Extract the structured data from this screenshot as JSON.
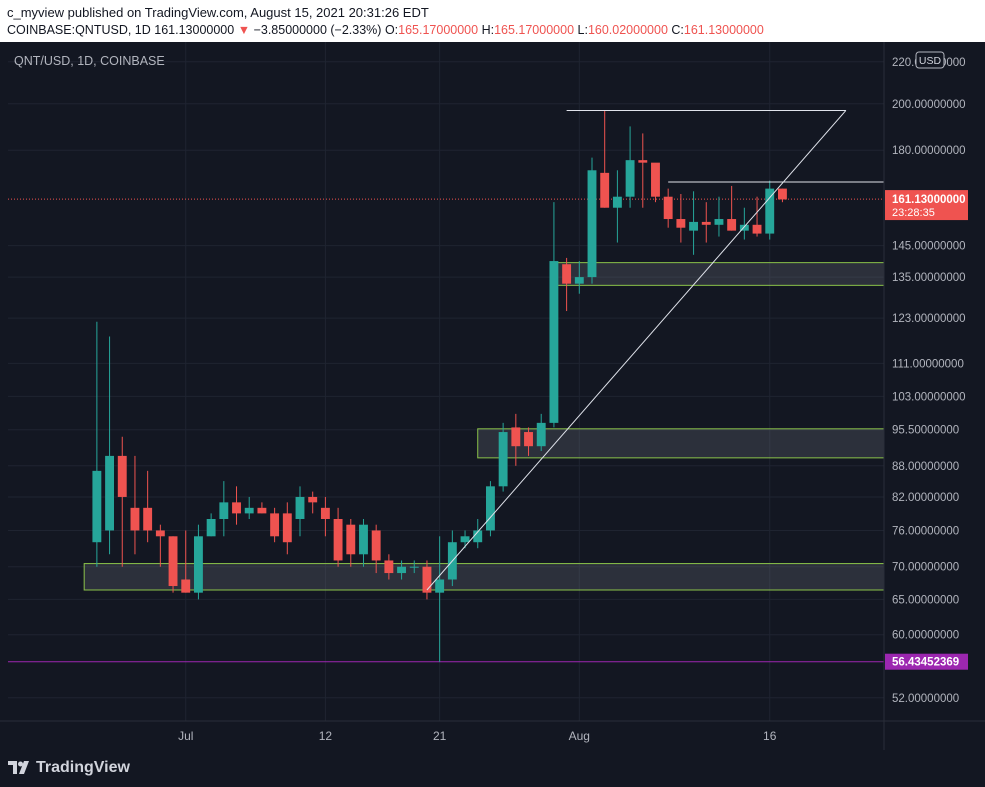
{
  "header": {
    "published": "c_myview published on TradingView.com, August 15, 2021 20:31:26 EDT",
    "symbol": "COINBASE:QNTUSD, 1D",
    "last": "161.13000000",
    "arrow": "▼",
    "change": "−3.85000000 (−2.33%)",
    "o_label": "O:",
    "o_value": "165.17000000",
    "h_label": "H:",
    "h_value": "165.17000000",
    "l_label": "L:",
    "l_value": "160.02000000",
    "c_label": "C:",
    "c_value": "161.13000000"
  },
  "footer": {
    "brand": "TradingView",
    "logo_icon": "tradingview-logo-icon"
  },
  "colors": {
    "background": "#131722",
    "up": "#26a69a",
    "down": "#ef5350",
    "grid": "#1f2431",
    "text": "#b2b5be",
    "zone_stroke": "#8bc34a",
    "support_line": "#9c27b0"
  },
  "chart_data": {
    "type": "candlestick",
    "legend": "QNT/USD, 1D, COINBASE",
    "currency": "USD",
    "y_scale": "log",
    "ylim": [
      49,
      228
    ],
    "y_ticks": [
      "52.00000000",
      "60.00000000",
      "65.00000000",
      "70.00000000",
      "76.00000000",
      "82.00000000",
      "88.00000000",
      "95.50000000",
      "103.00000000",
      "111.00000000",
      "123.00000000",
      "135.00000000",
      "145.00000000",
      "180.00000000",
      "200.00000000",
      "220.00000000"
    ],
    "x_ticks": [
      {
        "label": "Jul",
        "date": "2021-07-01"
      },
      {
        "label": "12",
        "date": "2021-07-12"
      },
      {
        "label": "21",
        "date": "2021-07-21"
      },
      {
        "label": "Aug",
        "date": "2021-08-01"
      },
      {
        "label": "16",
        "date": "2021-08-16"
      }
    ],
    "x_range": [
      "2021-06-17",
      "2021-08-25"
    ],
    "candles": [
      {
        "date": "2021-06-24",
        "o": 74,
        "h": 122,
        "l": 70,
        "c": 87
      },
      {
        "date": "2021-06-25",
        "o": 76,
        "h": 118,
        "l": 72,
        "c": 90
      },
      {
        "date": "2021-06-26",
        "o": 90,
        "h": 94,
        "l": 70,
        "c": 82
      },
      {
        "date": "2021-06-27",
        "o": 80,
        "h": 90,
        "l": 72,
        "c": 76
      },
      {
        "date": "2021-06-28",
        "o": 80,
        "h": 87,
        "l": 74,
        "c": 76
      },
      {
        "date": "2021-06-29",
        "o": 76,
        "h": 77,
        "l": 70,
        "c": 75
      },
      {
        "date": "2021-06-30",
        "o": 75,
        "h": 75,
        "l": 66,
        "c": 67
      },
      {
        "date": "2021-07-01",
        "o": 68,
        "h": 76,
        "l": 66,
        "c": 66
      },
      {
        "date": "2021-07-02",
        "o": 66,
        "h": 77,
        "l": 65,
        "c": 75
      },
      {
        "date": "2021-07-03",
        "o": 75,
        "h": 79,
        "l": 75,
        "c": 78
      },
      {
        "date": "2021-07-04",
        "o": 78,
        "h": 85,
        "l": 75,
        "c": 81
      },
      {
        "date": "2021-07-05",
        "o": 81,
        "h": 84,
        "l": 77,
        "c": 79
      },
      {
        "date": "2021-07-06",
        "o": 79,
        "h": 82,
        "l": 78,
        "c": 80
      },
      {
        "date": "2021-07-07",
        "o": 80,
        "h": 81,
        "l": 79,
        "c": 79
      },
      {
        "date": "2021-07-08",
        "o": 79,
        "h": 80,
        "l": 74,
        "c": 75
      },
      {
        "date": "2021-07-09",
        "o": 79,
        "h": 81,
        "l": 72,
        "c": 74
      },
      {
        "date": "2021-07-10",
        "o": 78,
        "h": 84,
        "l": 75,
        "c": 82
      },
      {
        "date": "2021-07-11",
        "o": 82,
        "h": 83,
        "l": 79,
        "c": 81
      },
      {
        "date": "2021-07-12",
        "o": 80,
        "h": 82,
        "l": 75,
        "c": 78
      },
      {
        "date": "2021-07-13",
        "o": 78,
        "h": 80,
        "l": 70,
        "c": 71
      },
      {
        "date": "2021-07-14",
        "o": 77,
        "h": 78,
        "l": 70,
        "c": 72
      },
      {
        "date": "2021-07-15",
        "o": 72,
        "h": 78,
        "l": 70,
        "c": 77
      },
      {
        "date": "2021-07-16",
        "o": 76,
        "h": 77,
        "l": 69,
        "c": 71
      },
      {
        "date": "2021-07-17",
        "o": 71,
        "h": 72,
        "l": 68,
        "c": 69
      },
      {
        "date": "2021-07-18",
        "o": 69,
        "h": 71,
        "l": 68,
        "c": 70
      },
      {
        "date": "2021-07-19",
        "o": 70,
        "h": 71,
        "l": 69,
        "c": 70
      },
      {
        "date": "2021-07-20",
        "o": 70,
        "h": 71,
        "l": 65,
        "c": 66
      },
      {
        "date": "2021-07-21",
        "o": 66,
        "h": 75,
        "l": 56.4,
        "c": 68
      },
      {
        "date": "2021-07-22",
        "o": 68,
        "h": 76,
        "l": 67,
        "c": 74
      },
      {
        "date": "2021-07-23",
        "o": 74,
        "h": 76,
        "l": 73,
        "c": 75
      },
      {
        "date": "2021-07-24",
        "o": 74,
        "h": 78,
        "l": 73,
        "c": 76
      },
      {
        "date": "2021-07-25",
        "o": 76,
        "h": 85,
        "l": 75,
        "c": 84
      },
      {
        "date": "2021-07-26",
        "o": 84,
        "h": 97,
        "l": 83,
        "c": 95
      },
      {
        "date": "2021-07-27",
        "o": 96,
        "h": 99,
        "l": 88,
        "c": 92
      },
      {
        "date": "2021-07-28",
        "o": 95,
        "h": 96,
        "l": 90,
        "c": 92
      },
      {
        "date": "2021-07-29",
        "o": 92,
        "h": 99,
        "l": 91,
        "c": 97
      },
      {
        "date": "2021-07-30",
        "o": 97,
        "h": 160,
        "l": 96,
        "c": 140
      },
      {
        "date": "2021-07-31",
        "o": 139,
        "h": 141,
        "l": 125,
        "c": 133
      },
      {
        "date": "2021-08-01",
        "o": 133,
        "h": 140,
        "l": 130,
        "c": 135
      },
      {
        "date": "2021-08-02",
        "o": 135,
        "h": 177,
        "l": 133,
        "c": 172
      },
      {
        "date": "2021-08-03",
        "o": 171,
        "h": 197,
        "l": 158,
        "c": 158
      },
      {
        "date": "2021-08-04",
        "o": 158,
        "h": 172,
        "l": 146,
        "c": 162
      },
      {
        "date": "2021-08-05",
        "o": 162,
        "h": 190,
        "l": 158,
        "c": 176
      },
      {
        "date": "2021-08-06",
        "o": 176,
        "h": 187,
        "l": 158,
        "c": 175
      },
      {
        "date": "2021-08-07",
        "o": 175,
        "h": 174,
        "l": 160,
        "c": 162
      },
      {
        "date": "2021-08-08",
        "o": 162,
        "h": 165,
        "l": 151,
        "c": 154
      },
      {
        "date": "2021-08-09",
        "o": 154,
        "h": 163,
        "l": 146,
        "c": 151
      },
      {
        "date": "2021-08-10",
        "o": 150,
        "h": 164,
        "l": 142,
        "c": 153
      },
      {
        "date": "2021-08-11",
        "o": 153,
        "h": 160,
        "l": 146,
        "c": 152
      },
      {
        "date": "2021-08-12",
        "o": 152,
        "h": 162,
        "l": 148,
        "c": 154
      },
      {
        "date": "2021-08-13",
        "o": 154,
        "h": 166,
        "l": 150,
        "c": 150
      },
      {
        "date": "2021-08-14",
        "o": 150,
        "h": 158,
        "l": 147,
        "c": 152
      },
      {
        "date": "2021-08-15",
        "o": 152,
        "h": 162,
        "l": 148,
        "c": 149
      },
      {
        "date": "2021-08-16",
        "o": 149,
        "h": 168,
        "l": 147,
        "c": 165
      },
      {
        "date": "2021-08-17",
        "o": 165,
        "h": 165,
        "l": 160,
        "c": 161
      }
    ],
    "zones": [
      {
        "from": "2021-06-23",
        "y1": 66.4,
        "y2": 70.5
      },
      {
        "from": "2021-07-24",
        "y1": 89.6,
        "y2": 95.7
      },
      {
        "from": "2021-07-30",
        "y1": 132.5,
        "y2": 139.5
      }
    ],
    "hlines": [
      {
        "price": 56.43452369,
        "label": "56.43452369"
      }
    ],
    "trendlines": [
      {
        "from": {
          "date": "2021-07-20",
          "price": 66.4
        },
        "to": {
          "date": "2021-08-22",
          "price": 197
        }
      },
      {
        "from": {
          "date": "2021-07-31",
          "price": 197
        },
        "to": {
          "date": "2021-08-22",
          "price": 197
        }
      },
      {
        "from": {
          "date": "2021-08-08",
          "price": 167.5
        },
        "to": {
          "date": "2021-08-25",
          "price": 167.5
        }
      }
    ],
    "last_price": {
      "value": 161.13,
      "label": "161.13000000",
      "countdown": "23:28:35"
    }
  }
}
